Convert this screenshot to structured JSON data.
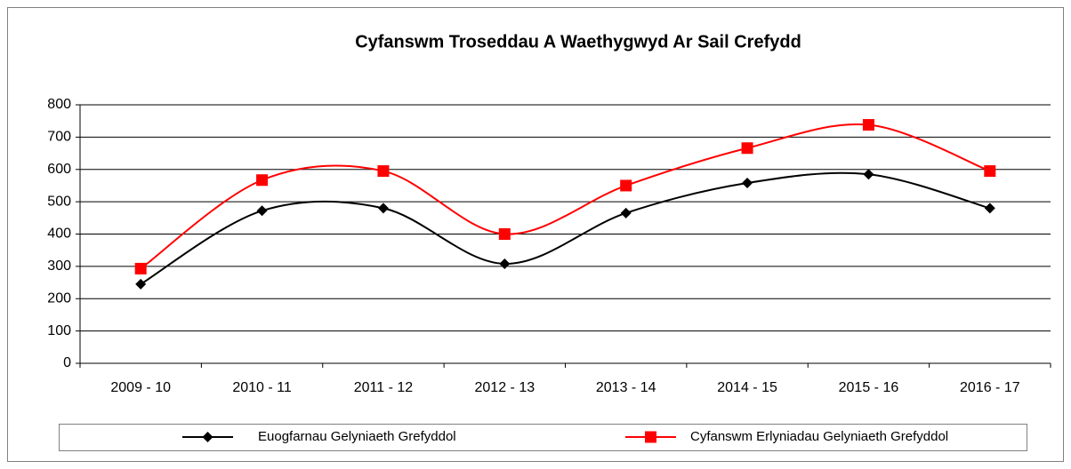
{
  "chart_data": {
    "type": "line",
    "title": "Cyfanswm Troseddau A Waethygwyd Ar Sail Crefydd",
    "categories": [
      "2009 - 10",
      "2010 - 11",
      "2011 - 12",
      "2012 - 13",
      "2013 - 14",
      "2014 - 15",
      "2015 - 16",
      "2016 - 17"
    ],
    "series": [
      {
        "name": "Euogfarnau Gelyniaeth Grefyddol",
        "color": "#000000",
        "marker": "diamond",
        "values": [
          245,
          472,
          480,
          308,
          465,
          558,
          585,
          480
        ]
      },
      {
        "name": "Cyfanswm Erlyniadau Gelyniaeth Grefyddol",
        "color": "#ff0000",
        "marker": "square",
        "values": [
          293,
          567,
          595,
          400,
          550,
          666,
          738,
          595
        ]
      }
    ],
    "ylim": [
      0,
      800
    ],
    "yticks": [
      0,
      100,
      200,
      300,
      400,
      500,
      600,
      700,
      800
    ],
    "grid": true,
    "smooth": true,
    "legend": "bottom"
  }
}
